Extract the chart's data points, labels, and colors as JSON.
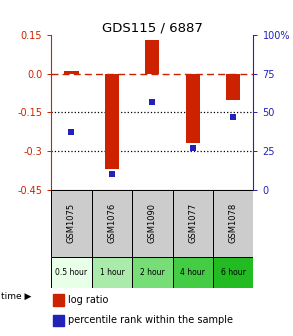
{
  "title": "GDS115 / 6887",
  "samples": [
    "GSM1075",
    "GSM1076",
    "GSM1090",
    "GSM1077",
    "GSM1078"
  ],
  "time_labels": [
    "0.5 hour",
    "1 hour",
    "2 hour",
    "4 hour",
    "6 hour"
  ],
  "time_colors": [
    "#e8ffe8",
    "#aaeaaa",
    "#77dd77",
    "#44cc44",
    "#22bb22"
  ],
  "log_ratio": [
    0.01,
    -0.37,
    0.13,
    -0.27,
    -0.1
  ],
  "percentile": [
    37,
    10,
    57,
    27,
    47
  ],
  "ylim_left": [
    -0.45,
    0.15
  ],
  "ylim_right": [
    0,
    100
  ],
  "left_ticks": [
    0.15,
    0.0,
    -0.15,
    -0.3,
    -0.45
  ],
  "right_ticks": [
    100,
    75,
    50,
    25,
    0
  ],
  "hlines_dotted": [
    -0.15,
    -0.3
  ],
  "hline_dashed": 0.0,
  "bar_color": "#cc2200",
  "dot_color": "#2222bb",
  "bar_width": 0.35,
  "background_color": "#ffffff",
  "plot_bg": "#ffffff",
  "sample_bg": "#cccccc",
  "figsize": [
    2.93,
    3.36
  ],
  "dpi": 100
}
